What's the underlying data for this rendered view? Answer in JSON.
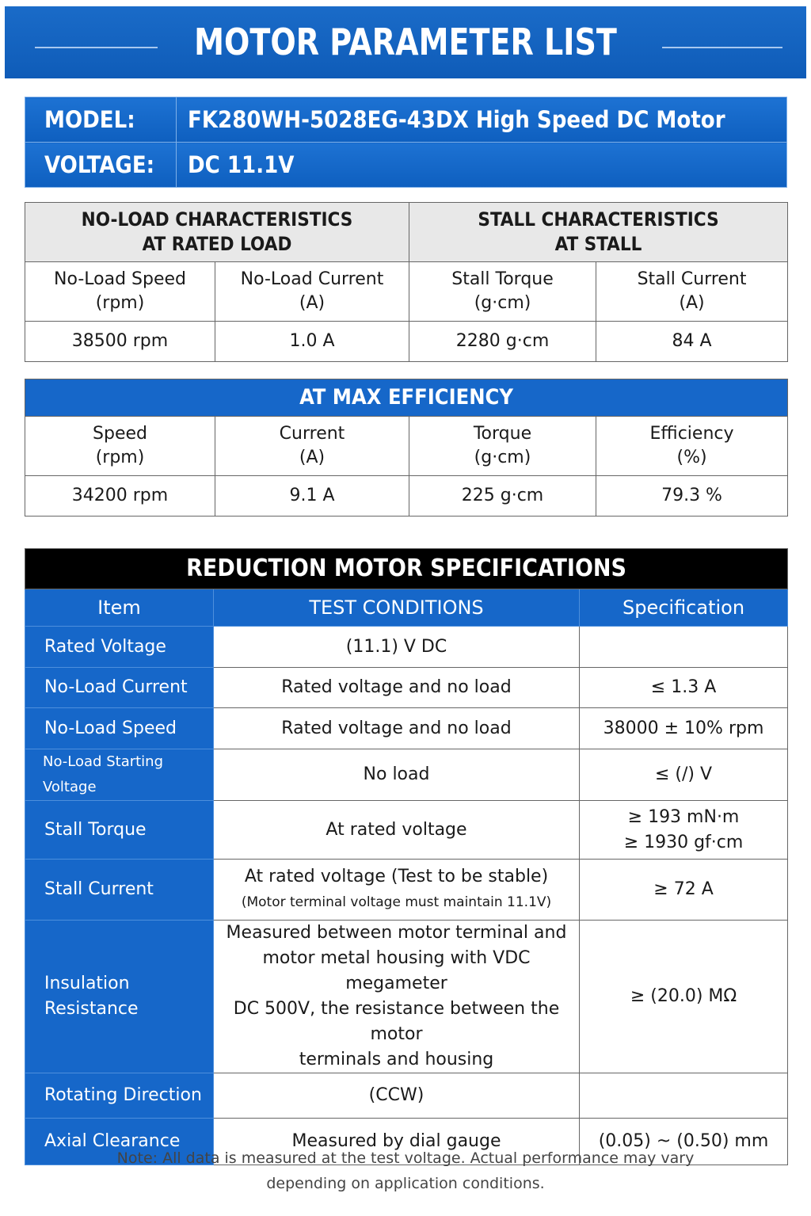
{
  "header": {
    "title": "MOTOR PARAMETER LIST"
  },
  "model": {
    "model_label": "MODEL:",
    "model_value": "FK280WH-5028EG-43DX High Speed DC Motor",
    "voltage_label": "VOLTAGE:",
    "voltage_value": "DC 11.1V"
  },
  "no_load_stall": {
    "left_header_1": "NO-LOAD CHARACTERISTICS",
    "left_header_2": "AT RATED LOAD",
    "right_header_1": "STALL CHARACTERISTICS",
    "right_header_2": "AT STALL",
    "columns": [
      {
        "name": "No-Load Speed",
        "unit": "(rpm)",
        "value": "38500 rpm"
      },
      {
        "name": "No-Load Current",
        "unit": "(A)",
        "value": "1.0 A"
      },
      {
        "name": "Stall Torque",
        "unit": "(g·cm)",
        "value": "2280 g·cm"
      },
      {
        "name": "Stall Current",
        "unit": "(A)",
        "value": "84 A"
      }
    ]
  },
  "max_efficiency": {
    "header": "AT MAX EFFICIENCY",
    "columns": [
      {
        "name": "Speed",
        "unit": "(rpm)",
        "value": "34200 rpm"
      },
      {
        "name": "Current",
        "unit": "(A)",
        "value": "9.1 A"
      },
      {
        "name": "Torque",
        "unit": "(g·cm)",
        "value": "225 g·cm"
      },
      {
        "name": "Efficiency",
        "unit": "(%)",
        "value": "79.3 %"
      }
    ]
  },
  "reduction": {
    "title": "REDUCTION MOTOR SPECIFICATIONS",
    "col_item": "Item",
    "col_conditions": "TEST CONDITIONS",
    "col_spec": "Specification",
    "rows": [
      {
        "item": "Rated Voltage",
        "condition": "(11.1) V DC",
        "spec": ""
      },
      {
        "item": "No-Load Current",
        "condition": "Rated voltage and no load",
        "spec": "≤ 1.3 A"
      },
      {
        "item": "No-Load Speed",
        "condition": "Rated voltage and no load",
        "spec": "38000 ± 10% rpm"
      },
      {
        "item": "No-Load Starting Voltage",
        "condition": "No load",
        "spec": "≤ (/) V"
      },
      {
        "item": "Stall Torque",
        "condition": "At rated voltage",
        "spec": "≥ 193 mN·m",
        "spec2": "≥ 1930 gf·cm"
      },
      {
        "item": "Stall Current",
        "condition": "At rated voltage (Test to be stable)",
        "condition2": "(Motor terminal voltage must maintain 11.1V)",
        "spec": "≥ 72 A"
      },
      {
        "item": "Insulation Resistance",
        "condition_lines": [
          "Measured between motor terminal and",
          "motor metal housing with  VDC megameter",
          "DC 500V, the resistance between the motor",
          "terminals and housing"
        ],
        "spec": "≥ (20.0) MΩ"
      },
      {
        "item": "Rotating Direction",
        "condition": "(CCW)",
        "spec": ""
      },
      {
        "item": "Axial Clearance",
        "condition": "Measured by dial gauge",
        "spec": "(0.05) ~ (0.50) mm"
      }
    ]
  },
  "note": {
    "line1": "Note: All data is measured at the test voltage. Actual performance may vary",
    "line2": "depending on application conditions."
  }
}
